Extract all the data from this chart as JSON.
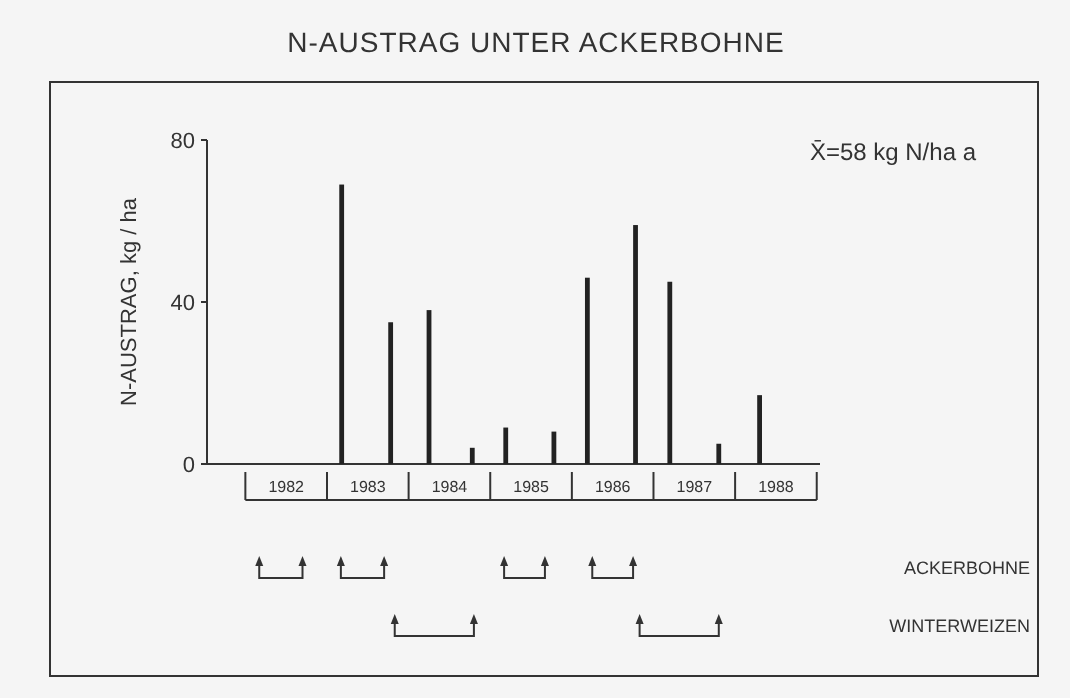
{
  "chart_data": {
    "type": "bar",
    "title": "N-AUSTRAG UNTER ACKERBOHNE",
    "ylabel": "N-AUSTRAG, kg / ha",
    "annotations": [
      "X̄=58 kg N/ha a",
      "ACKERBOHNE",
      "WINTERWEIZEN"
    ],
    "x": [
      1983.18,
      1983.78,
      1984.25,
      1984.78,
      1985.19,
      1985.78,
      1986.19,
      1986.78,
      1987.2,
      1987.8,
      1988.3
    ],
    "values": [
      69,
      35,
      38,
      4,
      9,
      8,
      46,
      59,
      45,
      5,
      17
    ],
    "color": "#222222",
    "xlim": [
      1981.53,
      1989.04
    ],
    "xticks": [
      {
        "value": 1982.5,
        "label": "1982"
      },
      {
        "value": 1983.5,
        "label": "1983"
      },
      {
        "value": 1984.5,
        "label": "1984"
      },
      {
        "value": 1985.5,
        "label": "1985"
      },
      {
        "value": 1986.5,
        "label": "1986"
      },
      {
        "value": 1987.5,
        "label": "1987"
      },
      {
        "value": 1988.5,
        "label": "1988"
      }
    ],
    "ylim": [
      0,
      80
    ],
    "yticks": [
      0,
      40,
      80
    ],
    "grid": false
  }
}
